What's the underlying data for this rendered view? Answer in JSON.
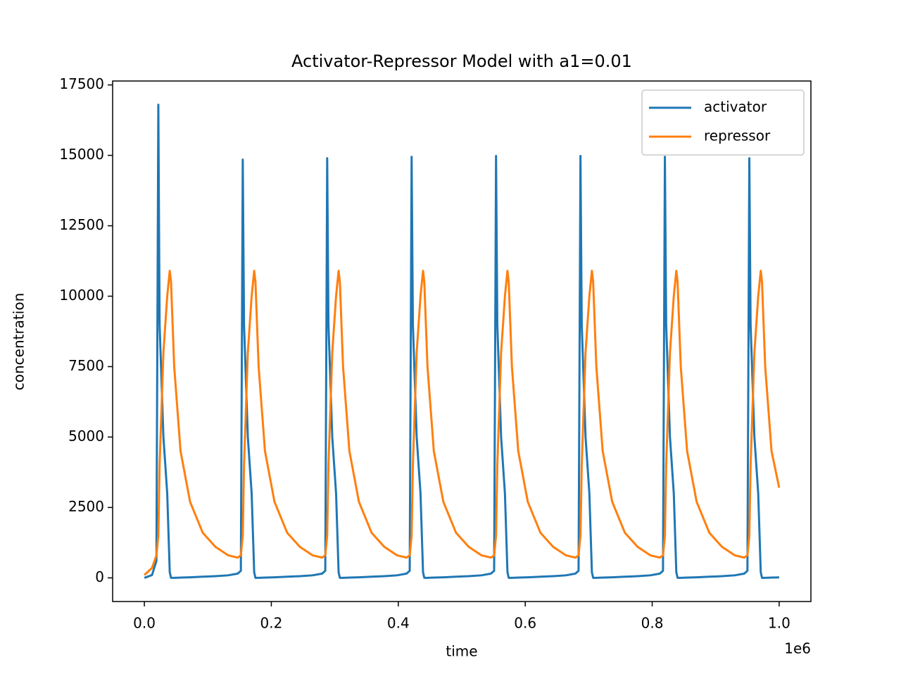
{
  "chart_data": {
    "type": "line",
    "title": "Activator-Repressor Model with a1=0.01",
    "xlabel": "time",
    "ylabel": "concentration",
    "x_offset_label": "1e6",
    "x": [
      0,
      12000,
      19000,
      22000,
      24000,
      30000,
      36000,
      40000,
      42000,
      47000,
      57000,
      72000,
      92000,
      112000,
      132000,
      147000,
      152000,
      155000,
      157000,
      163000,
      169000,
      173000,
      175000,
      180000,
      190000,
      205000,
      225000,
      245000,
      265000,
      280000,
      285000,
      288000,
      290000,
      296000,
      302000,
      306000,
      308000,
      313000,
      323000,
      338000,
      358000,
      378000,
      398000,
      413000,
      418000,
      421000,
      423000,
      429000,
      435000,
      439000,
      441000,
      446000,
      456000,
      471000,
      491000,
      511000,
      531000,
      546000,
      551000,
      554000,
      556000,
      562000,
      568000,
      572000,
      574000,
      579000,
      589000,
      604000,
      624000,
      644000,
      664000,
      679000,
      684000,
      687000,
      689000,
      695000,
      701000,
      705000,
      707000,
      712000,
      722000,
      737000,
      757000,
      777000,
      797000,
      812000,
      817000,
      820000,
      822000,
      828000,
      834000,
      838000,
      840000,
      845000,
      855000,
      870000,
      890000,
      910000,
      930000,
      945000,
      950000,
      953000,
      955000,
      961000,
      967000,
      971000,
      973000,
      978000,
      988000,
      1000000
    ],
    "series": [
      {
        "name": "activator",
        "color": "#1f77b4",
        "values": [
          0,
          100,
          600,
          16800,
          9000,
          5000,
          3000,
          200,
          0,
          0,
          10,
          20,
          40,
          60,
          90,
          150,
          250,
          14850,
          9000,
          5000,
          3000,
          200,
          0,
          0,
          10,
          20,
          40,
          60,
          90,
          150,
          250,
          14900,
          9000,
          5000,
          3000,
          200,
          0,
          0,
          10,
          20,
          40,
          60,
          90,
          150,
          250,
          14950,
          9000,
          5000,
          3000,
          200,
          0,
          0,
          10,
          20,
          40,
          60,
          90,
          150,
          250,
          14980,
          9000,
          5000,
          3000,
          200,
          0,
          0,
          10,
          20,
          40,
          60,
          90,
          150,
          250,
          14980,
          9000,
          5000,
          3000,
          200,
          0,
          0,
          10,
          20,
          40,
          60,
          90,
          150,
          250,
          14950,
          9000,
          5000,
          3000,
          200,
          0,
          0,
          10,
          20,
          40,
          60,
          90,
          150,
          250,
          14900,
          9000,
          5000,
          3000,
          200,
          0,
          0,
          10,
          15
        ]
      },
      {
        "name": "repressor",
        "color": "#ff7f0e",
        "values": [
          100,
          350,
          800,
          1500,
          4000,
          8000,
          10000,
          10900,
          10500,
          7500,
          4500,
          2700,
          1600,
          1100,
          800,
          720,
          800,
          1500,
          4000,
          8000,
          10000,
          10900,
          10500,
          7500,
          4500,
          2700,
          1600,
          1100,
          800,
          720,
          800,
          1500,
          4000,
          8000,
          10000,
          10900,
          10500,
          7500,
          4500,
          2700,
          1600,
          1100,
          800,
          720,
          800,
          1500,
          4000,
          8000,
          10000,
          10900,
          10500,
          7500,
          4500,
          2700,
          1600,
          1100,
          800,
          720,
          800,
          1500,
          4000,
          8000,
          10000,
          10900,
          10500,
          7500,
          4500,
          2700,
          1600,
          1100,
          800,
          720,
          800,
          1500,
          4000,
          8000,
          10000,
          10900,
          10500,
          7500,
          4500,
          2700,
          1600,
          1100,
          800,
          720,
          800,
          1500,
          4000,
          8000,
          10000,
          10900,
          10500,
          7500,
          4500,
          2700,
          1600,
          1100,
          800,
          720,
          800,
          1500,
          4000,
          8000,
          10000,
          10900,
          10500,
          7500,
          4500,
          3200
        ]
      }
    ],
    "xlim": [
      -50000,
      1050000
    ],
    "ylim": [
      -840,
      17640
    ],
    "xticks": [
      {
        "value": 0,
        "label": "0.0"
      },
      {
        "value": 200000,
        "label": "0.2"
      },
      {
        "value": 400000,
        "label": "0.4"
      },
      {
        "value": 600000,
        "label": "0.6"
      },
      {
        "value": 800000,
        "label": "0.8"
      },
      {
        "value": 1000000,
        "label": "1.0"
      }
    ],
    "yticks": [
      0,
      2500,
      5000,
      7500,
      10000,
      12500,
      15000,
      17500
    ],
    "legend": "upper right",
    "grid": false
  }
}
